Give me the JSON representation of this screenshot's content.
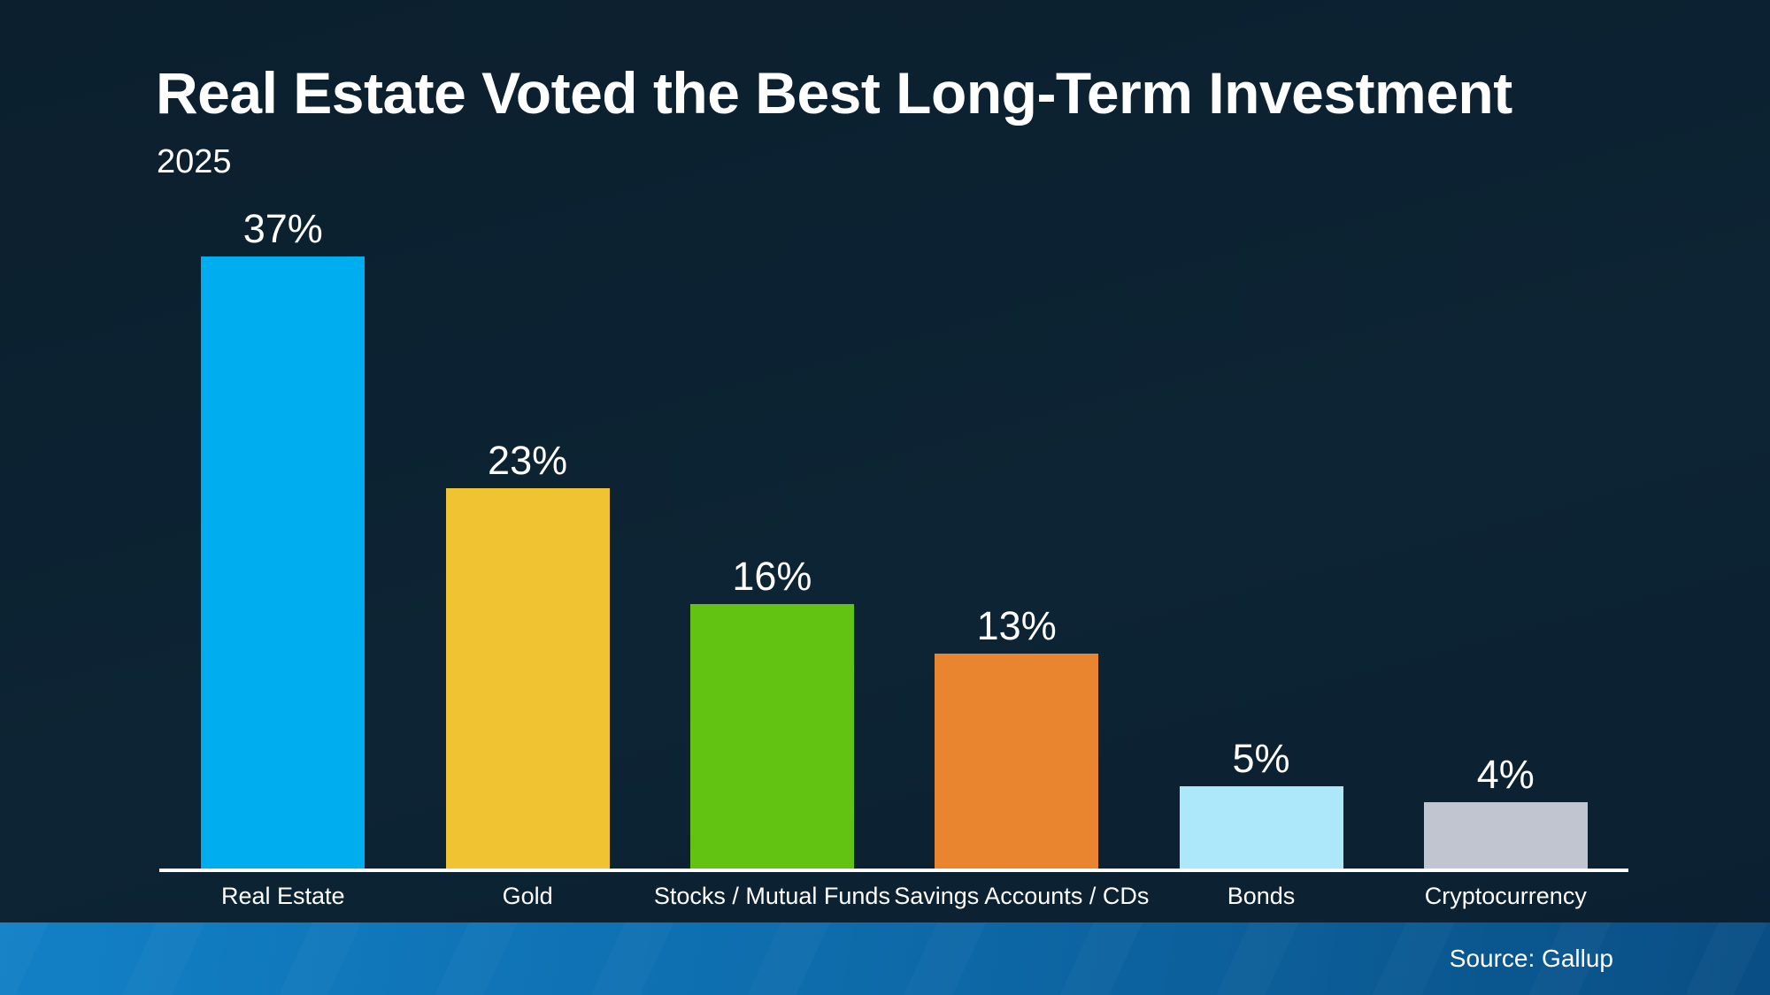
{
  "chart_data": {
    "type": "bar",
    "title": "Real Estate Voted the Best Long-Term Investment",
    "subtitle": "2025",
    "categories": [
      "Real Estate",
      "Gold",
      "Stocks / Mutual Funds",
      "Savings Accounts / CDs",
      "Bonds",
      "Cryptocurrency"
    ],
    "values": [
      37,
      23,
      16,
      13,
      5,
      4
    ],
    "value_labels": [
      "37%",
      "23%",
      "16%",
      "13%",
      "5%",
      "4%"
    ],
    "bar_colors": [
      "#00AEEF",
      "#F0C332",
      "#62C313",
      "#E9842F",
      "#ADE8FA",
      "#C1C5CF"
    ],
    "ylim": [
      0,
      40
    ],
    "grid": false,
    "legend": null,
    "xlabel": "",
    "ylabel": "",
    "source_label": "Source: Gallup"
  },
  "colors": {
    "background": "#0C2233",
    "axis_line": "#FFFFFF",
    "text": "#FFFFFF",
    "footer_gradient_left": "#1280C6",
    "footer_gradient_right": "#094E84"
  }
}
